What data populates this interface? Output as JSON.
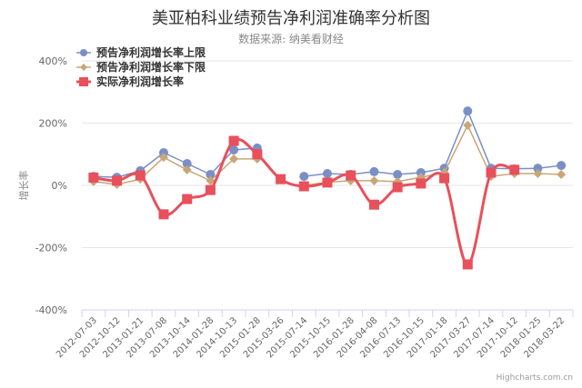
{
  "title": "美亚柏科业绩预告净利润准确率分析图",
  "subtitle": "数据来源: 纳美看财经",
  "credit": "Highcharts.com.cn",
  "chart_data": {
    "type": "line",
    "title": "美亚柏科业绩预告净利润准确率分析图",
    "subtitle": "数据来源: 纳美看财经",
    "xlabel": "",
    "ylabel": "增长率",
    "ylim": [
      -400,
      400
    ],
    "yticks": [
      "400%",
      "200%",
      "0%",
      "-200%",
      "-400%"
    ],
    "grid": true,
    "legend_position": "top-left inside",
    "categories": [
      "2012-07-03",
      "2012-10-12",
      "2013-01-21",
      "2013-07-08",
      "2013-10-14",
      "2014-01-28",
      "2014-10-13",
      "2015-01-28",
      "2015-03-26",
      "2015-07-14",
      "2015-10-15",
      "2016-01-28",
      "2016-04-08",
      "2016-07-13",
      "2016-10-15",
      "2017-01-18",
      "2017-03-27",
      "2017-07-14",
      "2017-10-12",
      "2018-01-25",
      "2018-03-22"
    ],
    "series": [
      {
        "name": "预告净利润增长率上限",
        "color": "#7b8fc7",
        "marker": "circle",
        "values": [
          29,
          26,
          47,
          105,
          70,
          35,
          114,
          120,
          null,
          29,
          38,
          35,
          44,
          35,
          41,
          55,
          239,
          55,
          53,
          55,
          64
        ]
      },
      {
        "name": "预告净利润增长率下限",
        "color": "#c9a676",
        "marker": "diamond",
        "values": [
          12,
          3,
          20,
          90,
          50,
          15,
          85,
          85,
          null,
          0,
          10,
          15,
          15,
          12,
          26,
          41,
          193,
          29,
          38,
          38,
          35
        ]
      },
      {
        "name": "实际净利润增长率",
        "color": "#e8505b",
        "marker": "square",
        "values": [
          25,
          15,
          32,
          -93,
          -44,
          -15,
          143,
          100,
          20,
          -3,
          9,
          32,
          -62,
          -6,
          6,
          23,
          -254,
          41,
          50,
          null,
          null
        ]
      }
    ]
  }
}
